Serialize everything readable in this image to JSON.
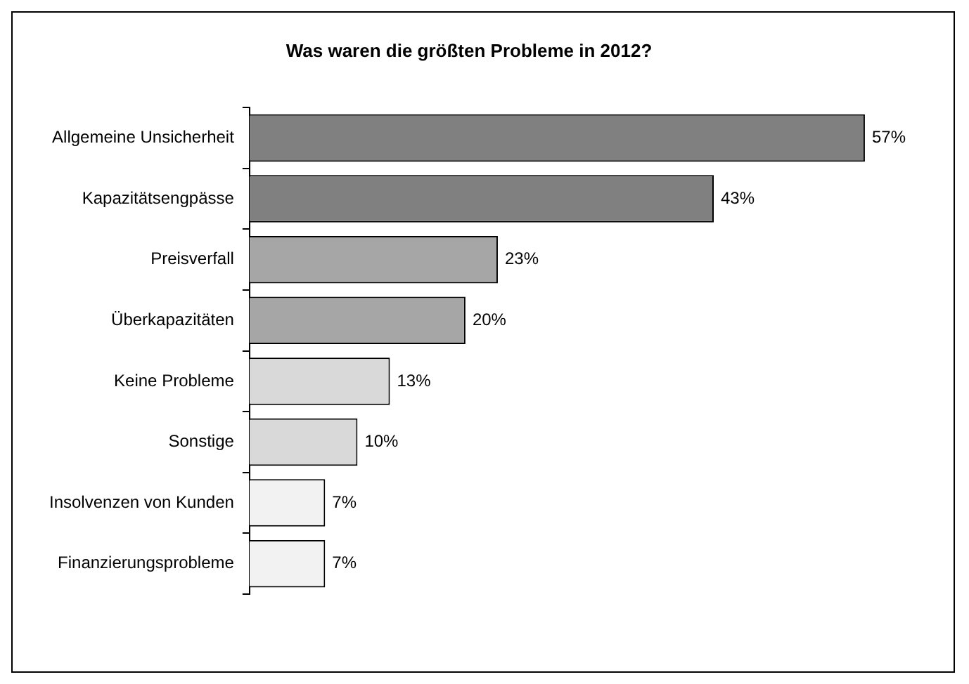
{
  "chart_data": {
    "type": "bar",
    "orientation": "horizontal",
    "title": "Was waren die größten Probleme in 2012?",
    "categories": [
      "Allgemeine Unsicherheit",
      "Kapazitätsengpässe",
      "Preisverfall",
      "Überkapazitäten",
      "Keine Probleme",
      "Sonstige",
      "Insolvenzen von Kunden",
      "Finanzierungsprobleme"
    ],
    "values": [
      57,
      43,
      23,
      20,
      13,
      10,
      7,
      7
    ],
    "colors": [
      "#808080",
      "#808080",
      "#a6a6a6",
      "#a6a6a6",
      "#d9d9d9",
      "#d9d9d9",
      "#f2f2f2",
      "#f2f2f2"
    ],
    "value_labels": [
      "57%",
      "43%",
      "23%",
      "20%",
      "13%",
      "10%",
      "7%",
      "7%"
    ]
  }
}
